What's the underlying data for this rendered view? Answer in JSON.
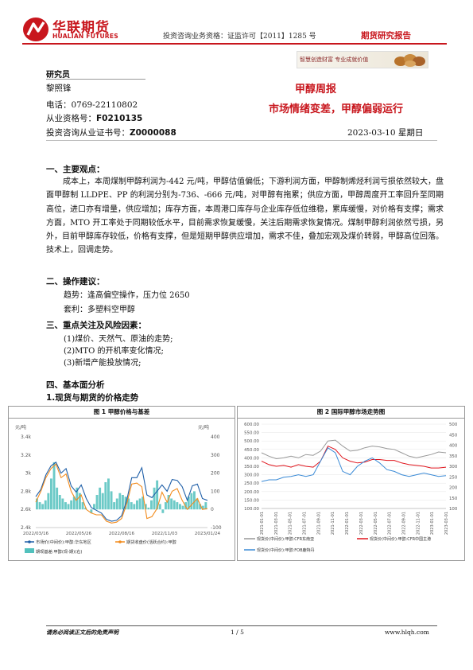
{
  "header": {
    "logo_cn": "华联期货",
    "logo_en": "HUALIAN FUTURES",
    "license": "投资咨询业务资格：证监许可【2011】1285 号",
    "report_type": "期货研究报告",
    "banner": "智慧创造财富  专业成就价值",
    "brand_color": "#c8161d"
  },
  "analyst": {
    "heading": "研究员",
    "name": "黎照锋",
    "phone": "电话：0769-22110802",
    "qual_label": "从业资格号：",
    "qual_no": "F0210135",
    "cert_label": "投资咨询从业证书号：",
    "cert_no": "Z0000088"
  },
  "report": {
    "title": "甲醇周报",
    "subtitle": "市场情绪变差，甲醇偏弱运行",
    "date": "2023-03-10 星期日"
  },
  "sections": {
    "s1": "一、主要观点：",
    "s1_body": "成本上，本周煤制甲醇利润为-442 元/吨，甲醇估值偏低；下游利润方面，甲醇制烯烃利润亏损依然较大，盘面甲醇制 LLDPE、PP 的利润分别为-736、-666 元/吨，对甲醇有拖累；供应方面，甲醇周度开工率回升至同期高位，进口亦有增量，供应增加；库存方面，本周港口库存与企业库存低位维稳，累库缓慢，对价格有支撑；需求方面，MTO 开工率处于同期较低水平，目前需求恢复缓慢，关注后期需求恢复情况。煤制甲醇利润依然亏损，另外，目前甲醇库存较低，价格有支撑，但是短期甲醇供应增加，需求不佳，叠加宏观及煤价转弱，甲醇高位回落。技术上，回调走势。",
    "s2": "二、操作建议：",
    "s2_trend": "趋势：逢高偏空操作，压力位 2650",
    "s2_arb": "套利：多塑料空甲醇",
    "s3": "三、重点关注及风险因素：",
    "s3_items": [
      "(1)煤价、天然气、原油的走势;",
      "(2)MTO 的开机率变化情况;",
      "(3)新增产能投放情况;"
    ],
    "s4": "四、基本面分析",
    "s4_sub": "1.现货与期货的价格走势"
  },
  "figures": {
    "fig1_caption": "图 1  甲醇价格与基差",
    "fig2_caption": "图 2  国际甲醇市场走势图"
  },
  "chart_data": [
    {
      "type": "line",
      "title": "图 1  甲醇价格与基差",
      "left_unit": "元/吨",
      "right_unit": "元/吨",
      "y_left_ticks": [
        "3.4k",
        "3.2k",
        "3k",
        "2.8k",
        "2.6k",
        "2.4k"
      ],
      "y_left_lim": [
        2400,
        3400
      ],
      "y_right_ticks": [
        "400",
        "300",
        "200",
        "100",
        "0",
        "-100"
      ],
      "y_right_lim": [
        -100,
        400
      ],
      "x_ticks": [
        "2022/03/16",
        "2022/05/26",
        "2022/08/16",
        "2022/11/03",
        "2023/01/24"
      ],
      "series": [
        {
          "name": "市场价(中间价):甲醇:华东地区",
          "color": "#1f5fa8",
          "axis": "left",
          "values": [
            2740,
            2820,
            2980,
            3080,
            3120,
            3000,
            3050,
            2860,
            2790,
            2870,
            2720,
            2620,
            2590,
            2560,
            2490,
            2470,
            2480,
            2530,
            2700,
            2950,
            2950,
            3060,
            2760,
            2730,
            2800,
            2870,
            2800,
            2930,
            2920,
            2850,
            2700,
            2860,
            2880,
            2720,
            2700
          ]
        },
        {
          "name": "期货收盘价(活跃合约):甲醇",
          "color": "#f28c1e",
          "axis": "left",
          "values": [
            2680,
            2800,
            2950,
            3050,
            3100,
            2950,
            2990,
            2800,
            2700,
            2760,
            2600,
            2560,
            2540,
            2540,
            2470,
            2450,
            2460,
            2500,
            2660,
            2880,
            2890,
            2850,
            2500,
            2520,
            2610,
            2790,
            2680,
            2800,
            2830,
            2700,
            2600,
            2660,
            2720,
            2600,
            2610
          ]
        },
        {
          "name": "期现基差:甲醇(现-期)(右)",
          "color": "#52c1bd",
          "axis": "right",
          "kind": "bar",
          "values": [
            60,
            40,
            30,
            50,
            90,
            170,
            260,
            120,
            80,
            60,
            40,
            30,
            50,
            70,
            120,
            90,
            40,
            10,
            0,
            -20,
            30,
            80,
            120,
            90,
            150,
            170,
            100,
            40,
            60,
            90,
            80,
            70,
            60,
            40,
            30,
            50,
            60,
            70,
            30,
            10,
            50,
            120,
            160,
            30,
            -20,
            40,
            80,
            60,
            50,
            40,
            30,
            20,
            40,
            70,
            90,
            100,
            60,
            30,
            20,
            40
          ]
        }
      ]
    },
    {
      "type": "line",
      "title": "图 2  国际甲醇市场走势图",
      "y_left_ticks": [
        "600.00",
        "550.00",
        "500.00",
        "450.00",
        "400.00",
        "350.00",
        "300.00",
        "250.00",
        "200.00",
        "150.00",
        "100.00"
      ],
      "y_left_lim": [
        100,
        600
      ],
      "y_right_ticks": [
        "500",
        "450",
        "400",
        "350",
        "300",
        "250",
        "200",
        "150",
        "100"
      ],
      "y_right_lim": [
        100,
        500
      ],
      "x_ticks": [
        "2021-01-01",
        "2021-03-01",
        "2021-05-01",
        "2021-07-01",
        "2021-09-01",
        "2021-11-01",
        "2022-01-01",
        "2022-03-01",
        "2022-05-01",
        "2022-07-01",
        "2022-09-01",
        "2022-11-01",
        "2023-01-01",
        "2023-03-01"
      ],
      "legend": "bottom",
      "series": [
        {
          "name": "现货价(中间价):甲醇:CFR中国主港",
          "color": "#e0141c",
          "values": [
            380,
            360,
            350,
            355,
            345,
            360,
            350,
            345,
            380,
            470,
            450,
            400,
            380,
            370,
            375,
            390,
            390,
            385,
            385,
            370,
            360,
            355,
            350,
            340,
            340,
            345
          ]
        },
        {
          "name": "现货价(中间价):甲醇:CFR东南亚",
          "color": "#999999",
          "values": [
            430,
            410,
            395,
            400,
            410,
            400,
            420,
            415,
            440,
            500,
            505,
            470,
            440,
            445,
            460,
            470,
            465,
            455,
            450,
            430,
            410,
            400,
            410,
            420,
            435,
            430
          ]
        },
        {
          "name": "现货价(中间价):甲醇:FOB鹿特丹",
          "color": "#3a8ad6",
          "values": [
            260,
            270,
            270,
            285,
            290,
            300,
            290,
            300,
            380,
            460,
            430,
            320,
            300,
            350,
            380,
            400,
            370,
            330,
            320,
            300,
            290,
            300,
            310,
            300,
            290,
            295
          ]
        }
      ]
    }
  ],
  "footer": {
    "disclaimer": "请务必阅读正文后的免责声明",
    "page": "1 / 5",
    "site": "www.hlqh.com"
  }
}
